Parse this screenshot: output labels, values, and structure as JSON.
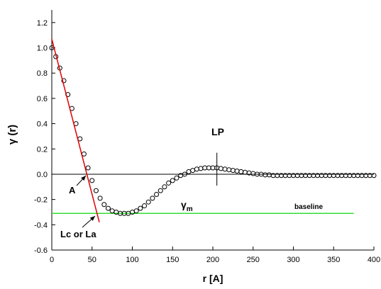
{
  "chart_data": {
    "type": "scatter",
    "x_label": "r [A]",
    "y_label": "γ (r)",
    "x": [
      0,
      5,
      10,
      15,
      20,
      25,
      30,
      35,
      40,
      45,
      50,
      55,
      60,
      65,
      70,
      75,
      80,
      85,
      90,
      95,
      100,
      105,
      110,
      115,
      120,
      125,
      130,
      135,
      140,
      145,
      150,
      155,
      160,
      165,
      170,
      175,
      180,
      185,
      190,
      195,
      200,
      205,
      210,
      215,
      220,
      225,
      230,
      235,
      240,
      245,
      250,
      255,
      260,
      265,
      270,
      275,
      280,
      285,
      290,
      295,
      300,
      305,
      310,
      315,
      320,
      325,
      330,
      335,
      340,
      345,
      350,
      355,
      360,
      365,
      370,
      375,
      380,
      385,
      390,
      395,
      400
    ],
    "series": [
      {
        "color": "#000000",
        "values": [
          1.0,
          0.93,
          0.84,
          0.74,
          0.63,
          0.52,
          0.4,
          0.28,
          0.16,
          0.05,
          -0.05,
          -0.13,
          -0.19,
          -0.24,
          -0.27,
          -0.29,
          -0.3,
          -0.31,
          -0.31,
          -0.31,
          -0.3,
          -0.29,
          -0.27,
          -0.25,
          -0.22,
          -0.19,
          -0.16,
          -0.13,
          -0.1,
          -0.07,
          -0.05,
          -0.03,
          -0.01,
          0.0,
          0.02,
          0.03,
          0.04,
          0.045,
          0.05,
          0.05,
          0.05,
          0.05,
          0.045,
          0.04,
          0.035,
          0.03,
          0.025,
          0.02,
          0.015,
          0.01,
          0.005,
          0.0,
          0.0,
          -0.005,
          -0.005,
          -0.01,
          -0.01,
          -0.01,
          -0.01,
          -0.01,
          -0.01,
          -0.01,
          -0.01,
          -0.01,
          -0.01,
          -0.01,
          -0.01,
          -0.01,
          -0.01,
          -0.01,
          -0.01,
          -0.01,
          -0.01,
          -0.01,
          -0.01,
          -0.01,
          -0.01,
          -0.01,
          -0.01,
          -0.01,
          -0.01
        ]
      }
    ],
    "xlim": [
      0,
      400
    ],
    "xticks": [
      0,
      50,
      100,
      150,
      200,
      250,
      300,
      350,
      400
    ],
    "ylim": [
      -0.6,
      1.3
    ],
    "yticks": [
      -0.6,
      -0.4,
      -0.2,
      {
        "value": 0,
        "label": "0.0"
      },
      0.2,
      0.4,
      0.6,
      0.8,
      {
        "value": 1,
        "label": "1.0"
      },
      1.2
    ],
    "tangent": {
      "color": "#e00000",
      "x": [
        0,
        59
      ],
      "y": [
        1.07,
        -0.38
      ]
    },
    "baseline": {
      "color": "#33dd33",
      "y": -0.31,
      "x": [
        0,
        375
      ],
      "label": "baseline"
    },
    "lp": {
      "label": "LP",
      "r": 205,
      "y": [
        0.17,
        -0.09
      ]
    },
    "point_label": "A",
    "length_label": "Lc or La",
    "gamma_m": {
      "symbol": "γ",
      "subscript": "m"
    }
  }
}
